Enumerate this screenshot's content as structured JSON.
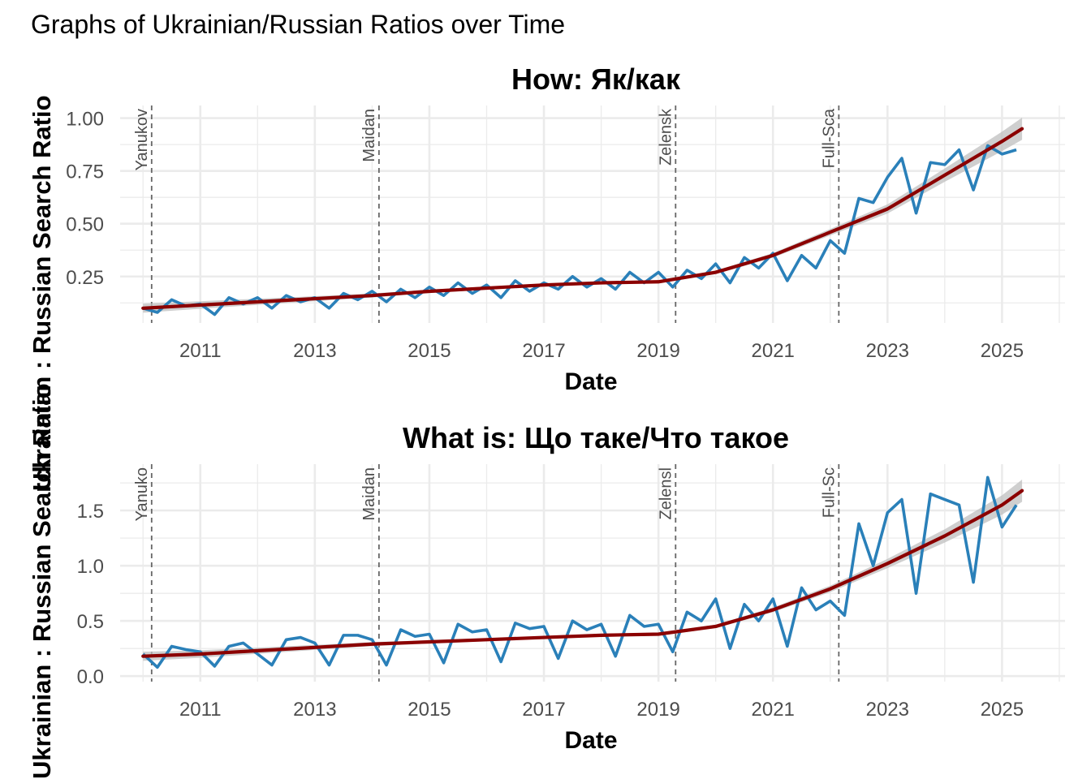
{
  "page_title": "Graphs of Ukrainian/Russian Ratios over Time",
  "colors": {
    "series": "#2a80b9",
    "trend": "#8b0000",
    "ribbon": "#bfbfbf",
    "grid": "#ebebeb",
    "event_line": "#666666"
  },
  "chart_data": [
    {
      "type": "line",
      "title": "How: Як/как",
      "xlabel": "Date",
      "ylabel": "Ukrainian : Russian Search Ratio",
      "xlim": [
        2009.6,
        2026.1
      ],
      "ylim": [
        0.03,
        1.06
      ],
      "x_ticks": [
        2011,
        2013,
        2015,
        2017,
        2019,
        2021,
        2023,
        2025
      ],
      "x_tick_labels": [
        "2011",
        "2013",
        "2015",
        "2017",
        "2019",
        "2021",
        "2023",
        "2025"
      ],
      "y_ticks": [
        0.25,
        0.5,
        0.75,
        1.0
      ],
      "y_tick_labels": [
        "0.25",
        "0.50",
        "0.75",
        "1.00"
      ],
      "grid": true,
      "events": [
        {
          "x": 2010.15,
          "label": "Yanukov"
        },
        {
          "x": 2014.12,
          "label": "Maidan"
        },
        {
          "x": 2019.3,
          "label": "Zelensk"
        },
        {
          "x": 2022.15,
          "label": "Full-Sca"
        }
      ],
      "series": [
        {
          "kind": "observed",
          "x": [
            2010.0,
            2010.25,
            2010.5,
            2010.75,
            2011.0,
            2011.25,
            2011.5,
            2011.75,
            2012.0,
            2012.25,
            2012.5,
            2012.75,
            2013.0,
            2013.25,
            2013.5,
            2013.75,
            2014.0,
            2014.25,
            2014.5,
            2014.75,
            2015.0,
            2015.25,
            2015.5,
            2015.75,
            2016.0,
            2016.25,
            2016.5,
            2016.75,
            2017.0,
            2017.25,
            2017.5,
            2017.75,
            2018.0,
            2018.25,
            2018.5,
            2018.75,
            2019.0,
            2019.25,
            2019.5,
            2019.75,
            2020.0,
            2020.25,
            2020.5,
            2020.75,
            2021.0,
            2021.25,
            2021.5,
            2021.75,
            2022.0,
            2022.25,
            2022.5,
            2022.75,
            2023.0,
            2023.25,
            2023.5,
            2023.75,
            2024.0,
            2024.25,
            2024.5,
            2024.75,
            2025.0,
            2025.25
          ],
          "y": [
            0.1,
            0.08,
            0.14,
            0.11,
            0.12,
            0.07,
            0.15,
            0.12,
            0.15,
            0.1,
            0.16,
            0.13,
            0.15,
            0.1,
            0.17,
            0.14,
            0.18,
            0.13,
            0.19,
            0.15,
            0.2,
            0.16,
            0.22,
            0.17,
            0.21,
            0.15,
            0.23,
            0.18,
            0.22,
            0.19,
            0.25,
            0.2,
            0.24,
            0.19,
            0.27,
            0.22,
            0.27,
            0.2,
            0.28,
            0.24,
            0.31,
            0.22,
            0.34,
            0.29,
            0.36,
            0.23,
            0.35,
            0.29,
            0.42,
            0.36,
            0.62,
            0.6,
            0.72,
            0.81,
            0.55,
            0.79,
            0.78,
            0.85,
            0.66,
            0.87,
            0.83,
            0.85
          ]
        },
        {
          "kind": "smoothed trend",
          "x": [
            2010.0,
            2011.0,
            2012.0,
            2013.0,
            2014.0,
            2015.0,
            2016.0,
            2017.0,
            2018.0,
            2019.0,
            2020.0,
            2021.0,
            2022.0,
            2023.0,
            2024.0,
            2025.0,
            2025.35
          ],
          "y": [
            0.1,
            0.115,
            0.13,
            0.145,
            0.16,
            0.18,
            0.195,
            0.21,
            0.22,
            0.225,
            0.27,
            0.35,
            0.46,
            0.57,
            0.73,
            0.89,
            0.95
          ]
        }
      ]
    },
    {
      "type": "line",
      "title": "What is: Що таке/Что такое",
      "xlabel": "Date",
      "ylabel": "Ukrainian : Russian Search Ratio",
      "xlim": [
        2009.6,
        2026.1
      ],
      "ylim": [
        -0.05,
        1.92
      ],
      "x_ticks": [
        2011,
        2013,
        2015,
        2017,
        2019,
        2021,
        2023,
        2025
      ],
      "x_tick_labels": [
        "2011",
        "2013",
        "2015",
        "2017",
        "2019",
        "2021",
        "2023",
        "2025"
      ],
      "y_ticks": [
        0.0,
        0.5,
        1.0,
        1.5
      ],
      "y_tick_labels": [
        "0.0",
        "0.5",
        "1.0",
        "1.5"
      ],
      "grid": true,
      "events": [
        {
          "x": 2010.15,
          "label": "Yanuko"
        },
        {
          "x": 2014.12,
          "label": "Maidan"
        },
        {
          "x": 2019.3,
          "label": "Zelensl"
        },
        {
          "x": 2022.15,
          "label": "Full-Sc"
        }
      ],
      "series": [
        {
          "kind": "observed",
          "x": [
            2010.0,
            2010.25,
            2010.5,
            2010.75,
            2011.0,
            2011.25,
            2011.5,
            2011.75,
            2012.0,
            2012.25,
            2012.5,
            2012.75,
            2013.0,
            2013.25,
            2013.5,
            2013.75,
            2014.0,
            2014.25,
            2014.5,
            2014.75,
            2015.0,
            2015.25,
            2015.5,
            2015.75,
            2016.0,
            2016.25,
            2016.5,
            2016.75,
            2017.0,
            2017.25,
            2017.5,
            2017.75,
            2018.0,
            2018.25,
            2018.5,
            2018.75,
            2019.0,
            2019.25,
            2019.5,
            2019.75,
            2020.0,
            2020.25,
            2020.5,
            2020.75,
            2021.0,
            2021.25,
            2021.5,
            2021.75,
            2022.0,
            2022.25,
            2022.5,
            2022.75,
            2023.0,
            2023.25,
            2023.5,
            2023.75,
            2024.0,
            2024.25,
            2024.5,
            2024.75,
            2025.0,
            2025.25
          ],
          "y": [
            0.2,
            0.08,
            0.27,
            0.24,
            0.22,
            0.09,
            0.27,
            0.3,
            0.2,
            0.1,
            0.33,
            0.35,
            0.3,
            0.1,
            0.37,
            0.37,
            0.33,
            0.1,
            0.42,
            0.36,
            0.38,
            0.12,
            0.47,
            0.4,
            0.42,
            0.13,
            0.48,
            0.43,
            0.45,
            0.16,
            0.5,
            0.42,
            0.47,
            0.18,
            0.55,
            0.45,
            0.47,
            0.22,
            0.58,
            0.5,
            0.7,
            0.25,
            0.65,
            0.5,
            0.7,
            0.27,
            0.8,
            0.6,
            0.68,
            0.55,
            1.38,
            1.0,
            1.48,
            1.6,
            0.75,
            1.65,
            1.6,
            1.55,
            0.85,
            1.8,
            1.35,
            1.55
          ]
        },
        {
          "kind": "smoothed trend",
          "x": [
            2010.0,
            2011.0,
            2012.0,
            2013.0,
            2014.0,
            2015.0,
            2016.0,
            2017.0,
            2018.0,
            2019.0,
            2020.0,
            2021.0,
            2022.0,
            2023.0,
            2024.0,
            2025.0,
            2025.35
          ],
          "y": [
            0.18,
            0.2,
            0.23,
            0.26,
            0.29,
            0.31,
            0.33,
            0.35,
            0.37,
            0.38,
            0.45,
            0.6,
            0.79,
            1.02,
            1.27,
            1.55,
            1.68
          ]
        }
      ]
    }
  ]
}
